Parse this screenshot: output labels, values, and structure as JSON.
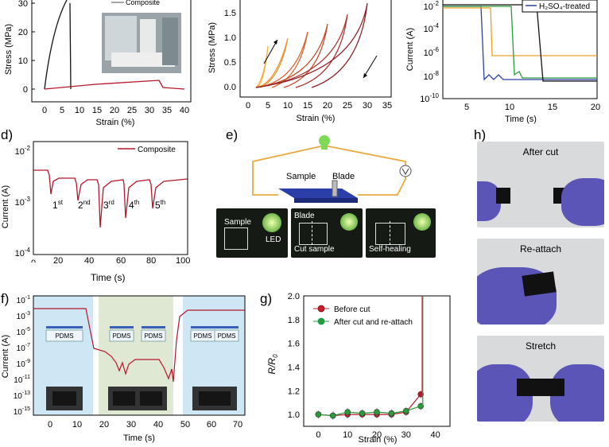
{
  "panel_letters": {
    "d": "d)",
    "e": "e)",
    "f": "f)",
    "g": "g)",
    "h": "h)"
  },
  "panel_a": {
    "ylabel": "Stress (MPa)",
    "xlabel": "Strain (%)",
    "legend": "Composite",
    "yticks": [
      "0",
      "10",
      "20",
      "30"
    ],
    "xticks": [
      "0",
      "5",
      "10",
      "15",
      "20",
      "25",
      "30",
      "35",
      "40"
    ]
  },
  "panel_b": {
    "ylabel": "Stress (MPa)",
    "xlabel": "Strain (%)",
    "yticks": [
      "0.0",
      "0.5",
      "1.0",
      "1.5"
    ],
    "xticks": [
      "0",
      "5",
      "10",
      "15",
      "20",
      "25",
      "30",
      "35"
    ]
  },
  "panel_c": {
    "ylabel": "Current (A)",
    "xlabel": "Time (s)",
    "legend": "H₂SO₄-treated",
    "ytick_exps": [
      "-2",
      "-4",
      "-6",
      "-8",
      "-10"
    ],
    "xticks": [
      "5",
      "10",
      "15",
      "20"
    ]
  },
  "panel_d": {
    "ylabel": "Current (A)",
    "xlabel": "Time (s)",
    "legend": "Composite",
    "ytick_exps": [
      "-2",
      "-3",
      "-4"
    ],
    "xticks": [
      "0",
      "20",
      "40",
      "60",
      "80",
      "100"
    ],
    "cycles": [
      {
        "n": "1",
        "s": "st"
      },
      {
        "n": "2",
        "s": "nd"
      },
      {
        "n": "3",
        "s": "rd"
      },
      {
        "n": "4",
        "s": "th"
      },
      {
        "n": "5",
        "s": "th"
      }
    ]
  },
  "panel_e": {
    "sample": "Sample",
    "blade": "Blade",
    "photo1_sample": "Sample",
    "photo1_led": "LED",
    "photo2_blade": "Blade",
    "photo2_cut": "Cut sample",
    "photo3_heal": "Self-healing"
  },
  "panel_f": {
    "ylabel": "Current (A)",
    "xlabel": "Time (s)",
    "ytick_exps": [
      "-1",
      "-3",
      "-5",
      "-7",
      "-9",
      "-11",
      "-13",
      "-15"
    ],
    "xticks": [
      "0",
      "10",
      "20",
      "30",
      "40",
      "50",
      "60",
      "70"
    ],
    "pdms": "PDMS"
  },
  "panel_g": {
    "ylabel": "R/R",
    "ylabel_sub": "0",
    "xlabel": "Strain (%)",
    "legend_before": "Before cut",
    "legend_after": "After cut and re-attach",
    "yticks": [
      "1.0",
      "1.2",
      "1.4",
      "1.6",
      "1.8",
      "2.0"
    ],
    "xticks": [
      "0",
      "10",
      "20",
      "30",
      "40"
    ]
  },
  "panel_h": {
    "after_cut": "After cut",
    "reattach": "Re-attach",
    "stretch": "Stretch"
  },
  "colors": {
    "composite": "#b5172b",
    "treated": "#2b3fa6",
    "orange": "#f0a020",
    "green": "#2a9a3a",
    "black": "#111111",
    "blue_bg": "#cfe7f5",
    "green_bg": "#dfe8d2"
  },
  "chart_data": [
    {
      "type": "line",
      "panel": "c",
      "series": [
        {
          "name": "H₂SO₄-treated",
          "x": [
            0,
            6.5,
            7,
            20
          ],
          "y": [
            -2.3,
            -2.3,
            -8.5,
            -8.8
          ]
        },
        {
          "name": "",
          "x": [
            0,
            7.8,
            8.5,
            20
          ],
          "y": [
            -2.3,
            -2.3,
            -6.5,
            -6.5
          ]
        },
        {
          "name": "",
          "x": [
            0,
            10.5,
            11,
            20
          ],
          "y": [
            -2.3,
            -2.3,
            -8.8,
            -8.8
          ]
        },
        {
          "name": "",
          "x": [
            0,
            13.5,
            14.5,
            20
          ],
          "y": [
            -2.1,
            -2.1,
            -8.8,
            -8.6
          ]
        }
      ]
    },
    {
      "type": "line",
      "panel": "g",
      "series": [
        {
          "name": "Before cut",
          "x": [
            0,
            5,
            10,
            15,
            20,
            25,
            30,
            35
          ],
          "y": [
            1.0,
            0.99,
            1.0,
            1.0,
            1.0,
            1.0,
            1.02,
            1.17
          ]
        },
        {
          "name": "After cut and re-attach",
          "x": [
            0,
            5,
            10,
            15,
            20,
            25,
            30,
            35
          ],
          "y": [
            1.0,
            0.99,
            1.02,
            1.01,
            1.02,
            1.01,
            1.03,
            1.07
          ]
        }
      ],
      "ylim": [
        0.9,
        2.0
      ],
      "xlim": [
        -5,
        45
      ]
    }
  ]
}
